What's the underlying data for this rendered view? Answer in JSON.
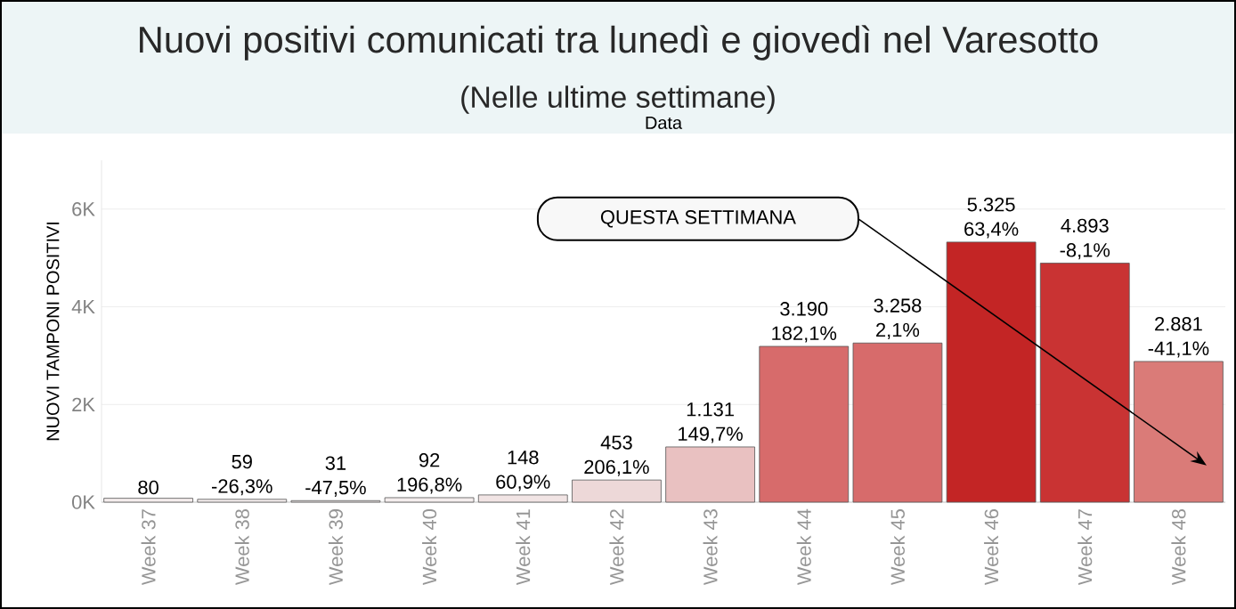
{
  "chart_data": {
    "type": "bar",
    "title": "Nuovi positivi comunicati tra lunedì e giovedì nel Varesotto",
    "subtitle": "(Nelle ultime settimane)",
    "xlabel": "Data",
    "ylabel": "NUOVI TAMPONI POSITIVI",
    "categories": [
      "Week 37",
      "Week 38",
      "Week 39",
      "Week 40",
      "Week 41",
      "Week 42",
      "Week 43",
      "Week 44",
      "Week 45",
      "Week 46",
      "Week 47",
      "Week 48"
    ],
    "values": [
      80,
      59,
      31,
      92,
      148,
      453,
      1131,
      3190,
      3258,
      5325,
      4893,
      2881
    ],
    "value_labels": [
      "80",
      "59",
      "31",
      "92",
      "148",
      "453",
      "1.131",
      "3.190",
      "3.258",
      "5.325",
      "4.893",
      "2.881"
    ],
    "colors": [
      "#f4eded",
      "#f4eded",
      "#f4eded",
      "#f4eded",
      "#f1e4e4",
      "#edd8d8",
      "#e9c1c1",
      "#d76b6b",
      "#d76b6b",
      "#c32525",
      "#c93333",
      "#da7b78"
    ],
    "ylim": [
      0,
      7000
    ],
    "yticks": [
      {
        "value": 0,
        "label": "0K"
      },
      {
        "value": 2000,
        "label": "2K"
      },
      {
        "value": 4000,
        "label": "4K"
      },
      {
        "value": 6000,
        "label": "6K"
      }
    ],
    "grid": "y",
    "annotations": [
      "QUESTA SETTIMANA",
      {
        "text": "-26,3%",
        "x": "Week 38",
        "y": 59
      },
      {
        "text": "-47,5%",
        "x": "Week 39",
        "y": 31
      },
      {
        "text": "196,8%",
        "x": "Week 40",
        "y": 92
      },
      {
        "text": "60,9%",
        "x": "Week 41",
        "y": 148
      },
      {
        "text": "206,1%",
        "x": "Week 42",
        "y": 453
      },
      {
        "text": "149,7%",
        "x": "Week 43",
        "y": 1131
      },
      {
        "text": "182,1%",
        "x": "Week 44",
        "y": 3190
      },
      {
        "text": "2,1%",
        "x": "Week 45",
        "y": 3258
      },
      {
        "text": "63,4%",
        "x": "Week 46",
        "y": 5325
      },
      {
        "text": "-8,1%",
        "x": "Week 47",
        "y": 4893
      },
      {
        "text": "-41,1%",
        "x": "Week 48",
        "y": 2881
      }
    ]
  }
}
